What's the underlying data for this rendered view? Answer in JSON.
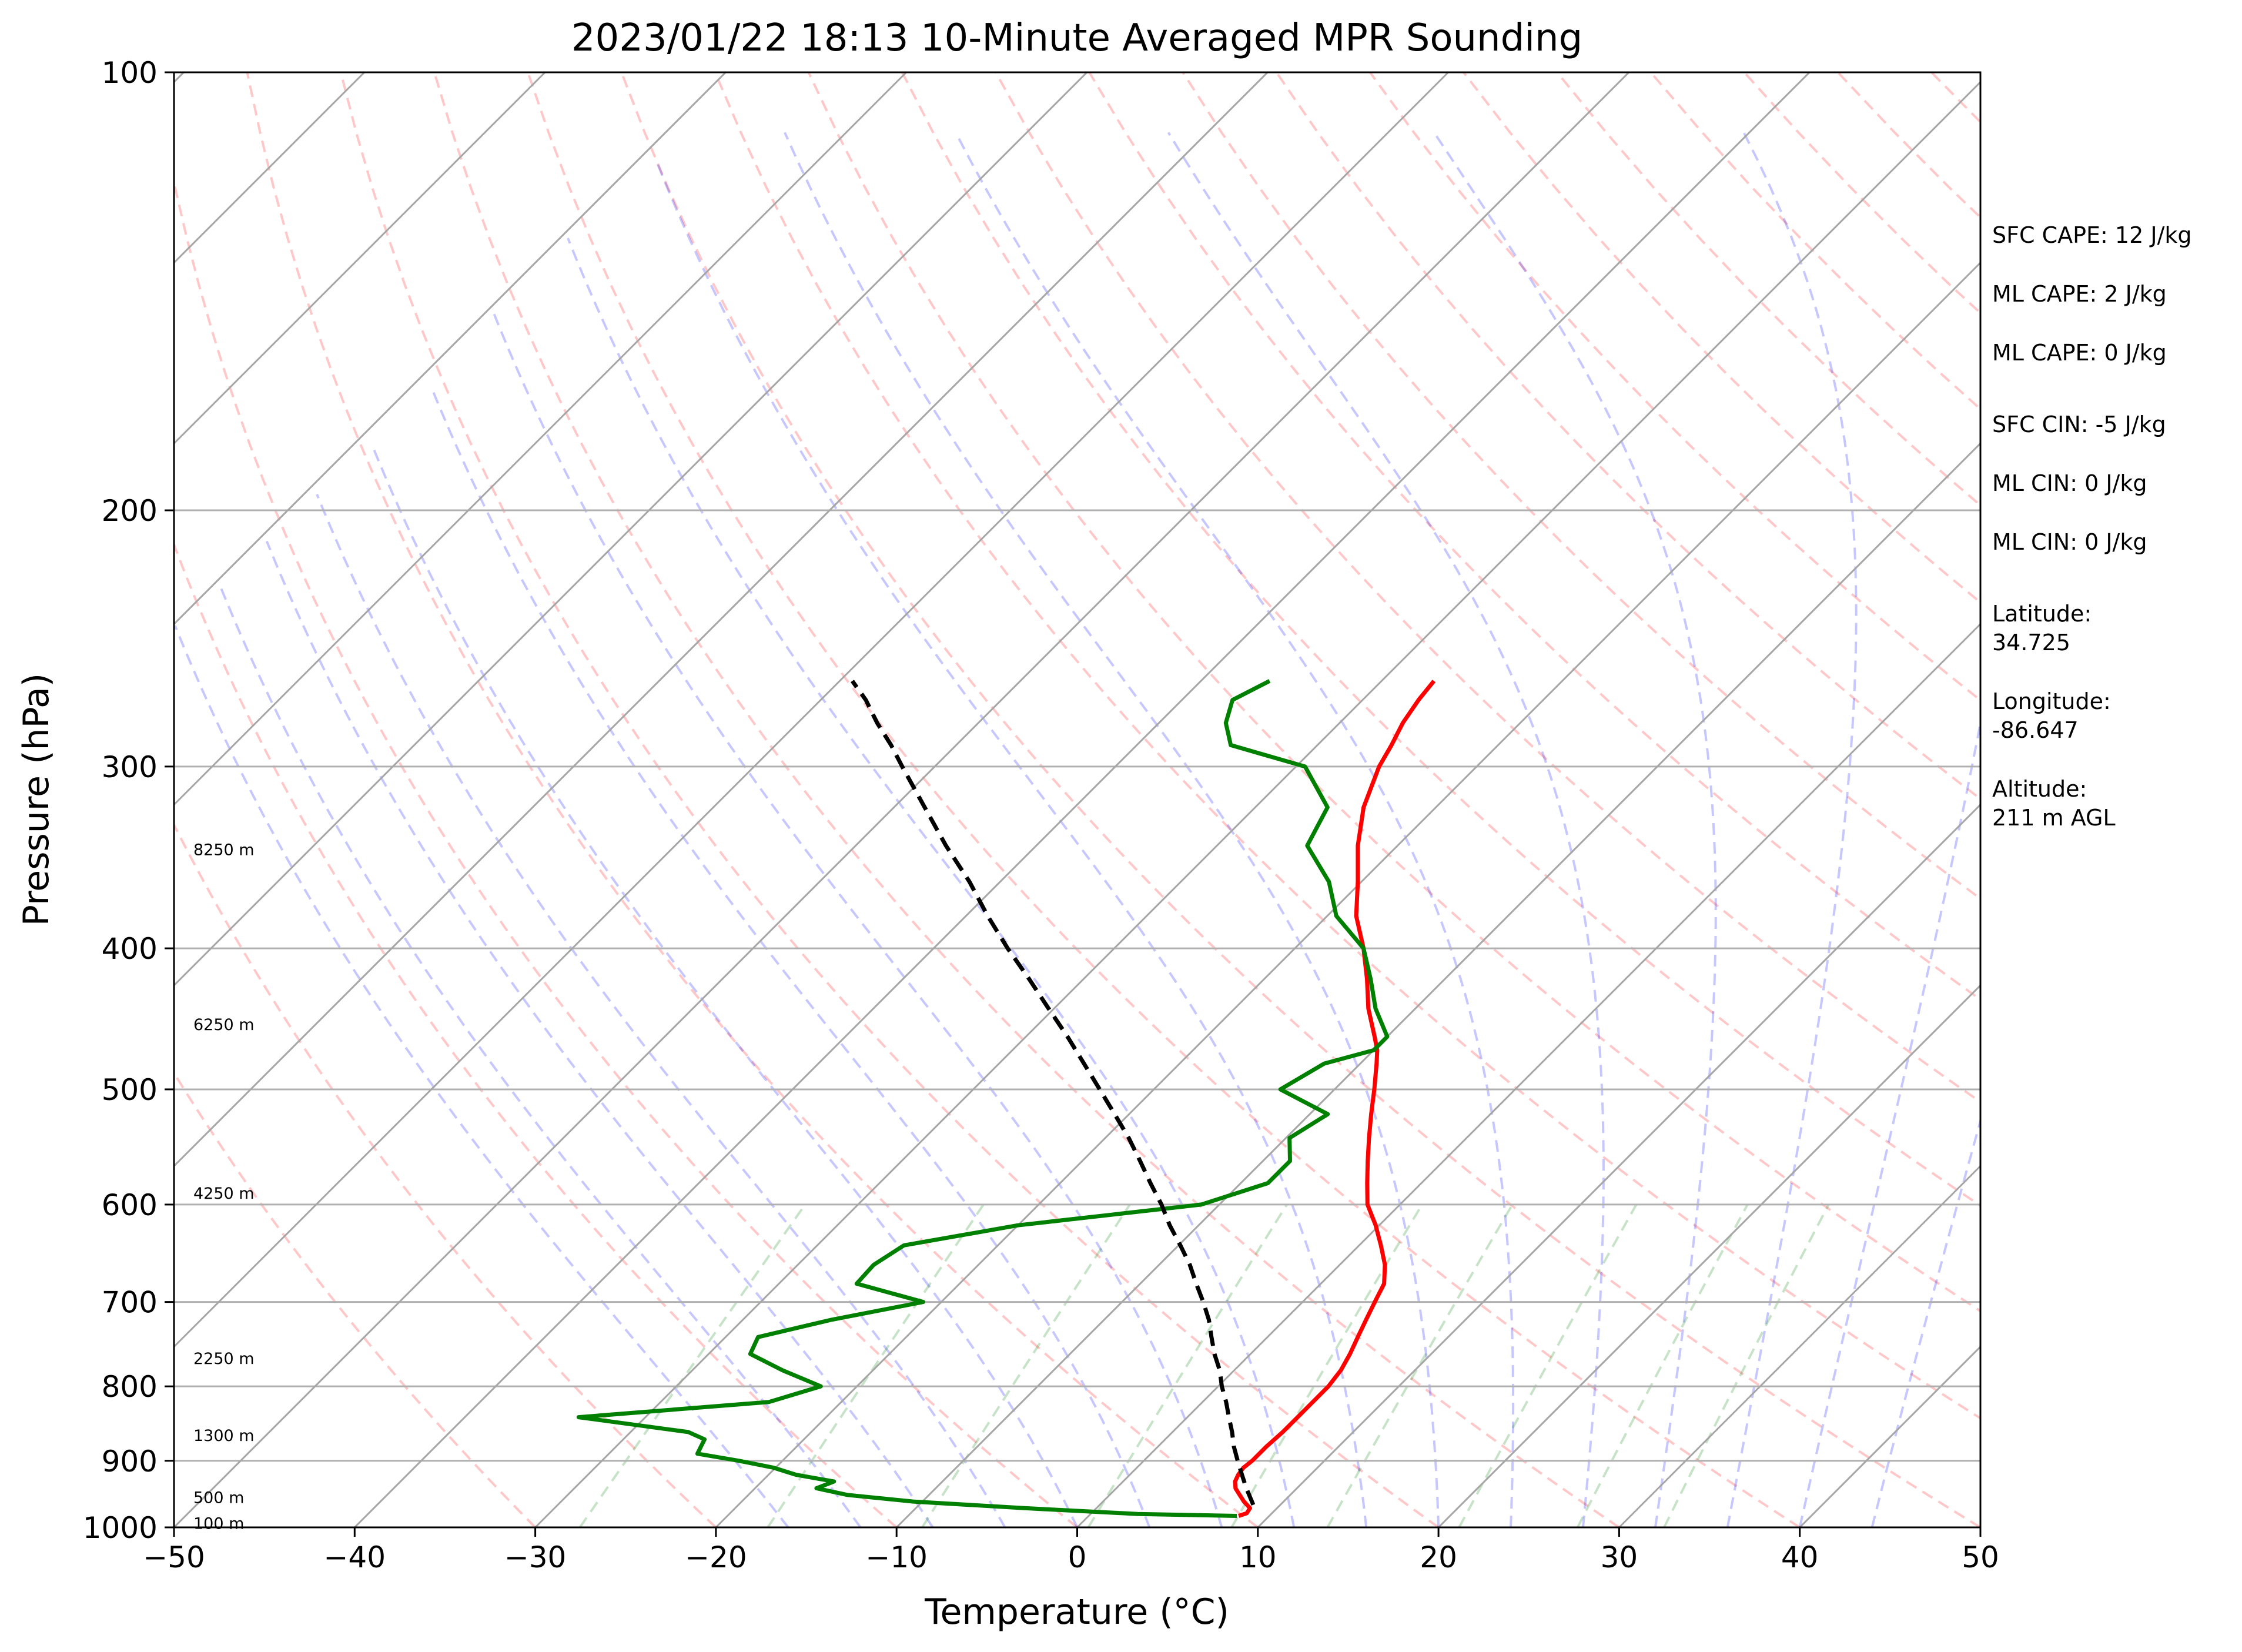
{
  "chart_data": {
    "type": "line",
    "title": "2023/01/22 18:13 10-Minute Averaged MPR Sounding",
    "xlabel": "Temperature (°C)",
    "ylabel": "Pressure (hPa)",
    "xlim": [
      -50,
      50
    ],
    "ylim": [
      1000,
      100
    ],
    "y_scale": "log",
    "skew": true,
    "grid": true,
    "x_ticks": [
      -50,
      -40,
      -30,
      -20,
      -10,
      0,
      10,
      20,
      30,
      40,
      50
    ],
    "x_tick_labels": [
      "−50",
      "−40",
      "−30",
      "−20",
      "−10",
      "0",
      "10",
      "20",
      "30",
      "40",
      "50"
    ],
    "y_ticks": [
      100,
      200,
      300,
      400,
      500,
      600,
      700,
      800,
      900,
      1000
    ],
    "y_tick_labels": [
      "100",
      "200",
      "300",
      "400",
      "500",
      "600",
      "700",
      "800",
      "900",
      "1000"
    ],
    "series": [
      {
        "color": "#ff0000",
        "style": "solid",
        "p": [
          982,
          978,
          970,
          960,
          950,
          940,
          930,
          920,
          910,
          900,
          880,
          860,
          840,
          820,
          800,
          780,
          760,
          740,
          720,
          700,
          680,
          660,
          640,
          620,
          600,
          580,
          560,
          540,
          520,
          500,
          480,
          470,
          460,
          440,
          420,
          400,
          380,
          360,
          340,
          320,
          300,
          290,
          280,
          270,
          262
        ],
        "values": [
          8.3,
          8.6,
          8.5,
          7.8,
          7.2,
          6.6,
          6.2,
          6.0,
          5.9,
          6.0,
          6.0,
          6.1,
          6.1,
          6.1,
          6.1,
          5.9,
          5.5,
          5.0,
          4.5,
          4.0,
          3.5,
          2.5,
          1.2,
          -0.2,
          -1.8,
          -3.0,
          -4.2,
          -5.4,
          -6.6,
          -7.8,
          -9.1,
          -9.8,
          -10.7,
          -12.6,
          -14.3,
          -16.2,
          -18.4,
          -20.2,
          -22.2,
          -24.0,
          -25.4,
          -25.9,
          -26.5,
          -26.9,
          -27.1
        ]
      },
      {
        "color": "#008000",
        "style": "solid",
        "p": [
          982,
          979,
          970,
          960,
          950,
          940,
          930,
          920,
          910,
          900,
          890,
          880,
          870,
          860,
          840,
          820,
          800,
          780,
          760,
          740,
          720,
          700,
          680,
          660,
          640,
          620,
          600,
          580,
          560,
          540,
          520,
          500,
          480,
          470,
          460,
          440,
          420,
          400,
          380,
          360,
          340,
          320,
          300,
          290,
          280,
          270,
          262
        ],
        "values": [
          8.2,
          2.6,
          -4.0,
          -10.5,
          -14.5,
          -16.6,
          -16.0,
          -18.5,
          -20.1,
          -22.4,
          -25.1,
          -25.3,
          -25.5,
          -26.8,
          -33.7,
          -24.0,
          -22.0,
          -25.0,
          -27.7,
          -28.2,
          -25.1,
          -21.0,
          -25.7,
          -25.8,
          -25.2,
          -20.0,
          -11.0,
          -8.5,
          -8.5,
          -9.8,
          -9.0,
          -13.0,
          -12.0,
          -10.0,
          -10.0,
          -12.2,
          -14.1,
          -16.2,
          -19.5,
          -21.8,
          -25.0,
          -26.0,
          -29.5,
          -34.8,
          -36.3,
          -37.2,
          -36.2
        ]
      },
      {
        "color": "#000000",
        "style": "dashed",
        "p": [
          965,
          940,
          920,
          900,
          880,
          860,
          840,
          820,
          800,
          780,
          760,
          740,
          720,
          700,
          680,
          660,
          640,
          620,
          600,
          580,
          560,
          540,
          520,
          500,
          480,
          460,
          440,
          420,
          400,
          380,
          360,
          340,
          320,
          300,
          290,
          280,
          270,
          262
        ],
        "values": [
          8.5,
          7.2,
          6.2,
          5.2,
          4.2,
          3.3,
          2.3,
          1.3,
          0.2,
          -0.8,
          -2.0,
          -3.1,
          -4.2,
          -5.5,
          -6.9,
          -8.3,
          -9.9,
          -11.6,
          -13.2,
          -15.0,
          -16.8,
          -18.7,
          -20.8,
          -23.0,
          -25.3,
          -27.7,
          -30.3,
          -33.0,
          -35.9,
          -38.8,
          -41.7,
          -45.0,
          -48.3,
          -51.8,
          -53.6,
          -55.6,
          -57.5,
          -59.3
        ]
      }
    ],
    "height_labels": [
      "100 m",
      "500 m",
      "1300 m",
      "2250 m",
      "4250 m",
      "6250 m",
      "8250 m"
    ],
    "height_label_pressures": [
      993,
      953,
      864,
      765,
      589,
      451,
      342
    ]
  },
  "info_panel": {
    "sfc_cape": "SFC CAPE: 12 J/kg",
    "ml_cape_1": "ML CAPE: 2 J/kg",
    "ml_cape_2": "ML CAPE: 0 J/kg",
    "sfc_cin": "SFC CIN: -5 J/kg",
    "ml_cin_1": "ML CIN: 0 J/kg",
    "ml_cin_2": "ML CIN: 0 J/kg",
    "latitude_label": "Latitude:",
    "latitude_value": "34.725",
    "longitude_label": "Longitude:",
    "longitude_value": "-86.647",
    "altitude_label": "Altitude:",
    "altitude_value": "211 m AGL"
  }
}
